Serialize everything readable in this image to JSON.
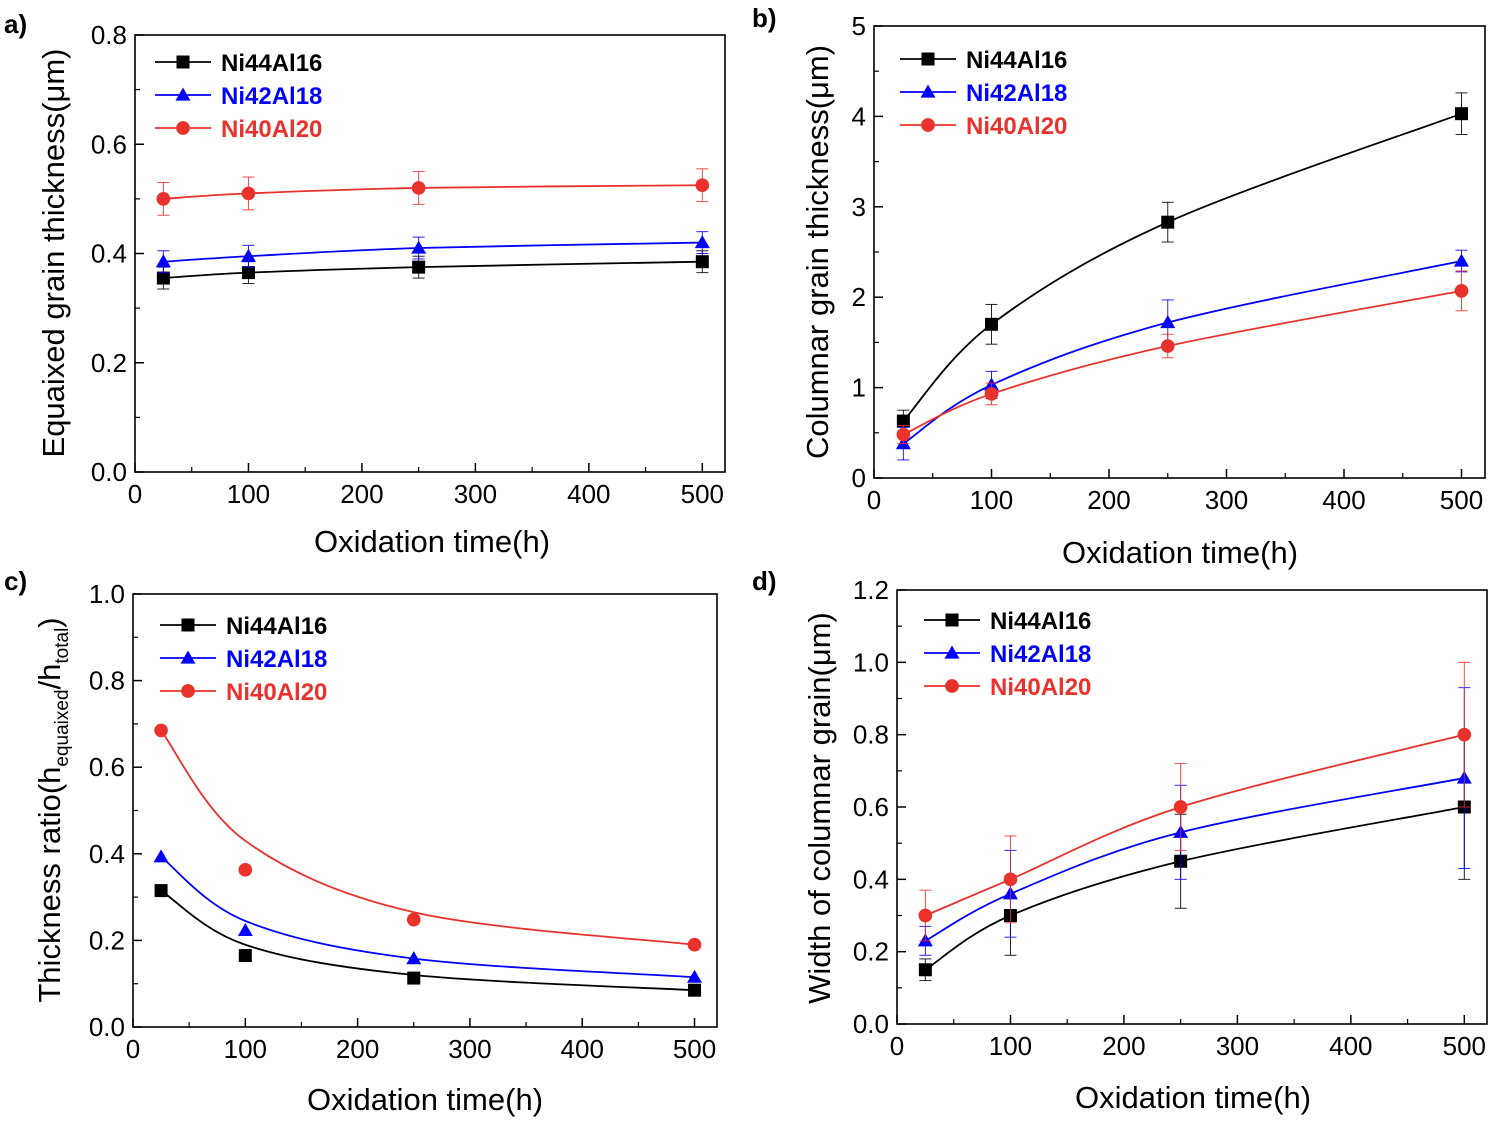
{
  "chart_data": [
    {
      "type": "line",
      "panel_label": "a)",
      "xlabel": "Oxidation time(h)",
      "ylabel": "Equaixed grain thickness(μm)",
      "xlim": [
        0,
        520
      ],
      "ylim": [
        0,
        0.8
      ],
      "xticks": [
        0,
        100,
        200,
        300,
        400,
        500
      ],
      "yticks": [
        0.0,
        0.2,
        0.4,
        0.6,
        0.8
      ],
      "yticklabels": [
        "0.0",
        "0.2",
        "0.4",
        "0.6",
        "0.8"
      ],
      "x": [
        25,
        100,
        250,
        500
      ],
      "legend_position": "top-left",
      "grid": false,
      "series": [
        {
          "name": "Ni44Al16",
          "color": "#000000",
          "marker": "square",
          "values": [
            0.355,
            0.365,
            0.375,
            0.385
          ],
          "errors": [
            0.02,
            0.02,
            0.02,
            0.02
          ]
        },
        {
          "name": "Ni42Al18",
          "color": "#0000ff",
          "marker": "triangle",
          "values": [
            0.385,
            0.395,
            0.41,
            0.42
          ],
          "errors": [
            0.02,
            0.02,
            0.02,
            0.02
          ]
        },
        {
          "name": "Ni40Al20",
          "color": "#e8322b",
          "marker": "circle",
          "values": [
            0.5,
            0.51,
            0.52,
            0.525
          ],
          "errors": [
            0.03,
            0.03,
            0.03,
            0.03
          ]
        }
      ]
    },
    {
      "type": "line",
      "panel_label": "b)",
      "xlabel": "Oxidation time(h)",
      "ylabel": "Columnar grain thickness(μm)",
      "xlim": [
        0,
        520
      ],
      "ylim": [
        0,
        5
      ],
      "xticks": [
        0,
        100,
        200,
        300,
        400,
        500
      ],
      "yticks": [
        0,
        1,
        2,
        3,
        4,
        5
      ],
      "yticklabels": [
        "0",
        "1",
        "2",
        "3",
        "4",
        "5"
      ],
      "x": [
        25,
        100,
        250,
        500
      ],
      "legend_position": "top-left",
      "grid": false,
      "series": [
        {
          "name": "Ni44Al16",
          "color": "#000000",
          "marker": "square",
          "values": [
            0.63,
            1.7,
            2.83,
            4.03
          ],
          "errors": [
            0.12,
            0.22,
            0.22,
            0.23
          ]
        },
        {
          "name": "Ni42Al18",
          "color": "#0000ff",
          "marker": "triangle",
          "values": [
            0.38,
            1.03,
            1.72,
            2.4
          ],
          "errors": [
            0.18,
            0.15,
            0.25,
            0.12
          ]
        },
        {
          "name": "Ni40Al20",
          "color": "#e8322b",
          "marker": "circle",
          "values": [
            0.48,
            0.93,
            1.46,
            2.07
          ],
          "errors": [
            0.1,
            0.12,
            0.13,
            0.22
          ]
        }
      ]
    },
    {
      "type": "line",
      "panel_label": "c)",
      "xlabel": "Oxidation time(h)",
      "ylabel": "Thickness ratio(h",
      "ylabel_sub1": "equaixed",
      "ylabel_mid": "/h",
      "ylabel_sub2": "total",
      "ylabel_end": ")",
      "xlim": [
        0,
        520
      ],
      "ylim": [
        0,
        1.0
      ],
      "xticks": [
        0,
        100,
        200,
        300,
        400,
        500
      ],
      "yticks": [
        0.0,
        0.2,
        0.4,
        0.6,
        0.8,
        1.0
      ],
      "yticklabels": [
        "0.0",
        "0.2",
        "0.4",
        "0.6",
        "0.8",
        "1.0"
      ],
      "x": [
        25,
        100,
        250,
        500
      ],
      "legend_position": "top-left",
      "grid": false,
      "series": [
        {
          "name": "Ni44Al16",
          "color": "#000000",
          "marker": "square",
          "values": [
            0.315,
            0.165,
            0.113,
            0.085
          ],
          "fit": [
            0.315,
            0.19,
            0.12,
            0.085
          ]
        },
        {
          "name": "Ni42Al18",
          "color": "#0000ff",
          "marker": "triangle",
          "values": [
            0.393,
            0.223,
            0.158,
            0.115
          ],
          "fit": [
            0.393,
            0.245,
            0.158,
            0.115
          ]
        },
        {
          "name": "Ni40Al20",
          "color": "#e8322b",
          "marker": "circle",
          "values": [
            0.685,
            0.363,
            0.248,
            0.19
          ],
          "fit": [
            0.685,
            0.43,
            0.265,
            0.19
          ]
        }
      ]
    },
    {
      "type": "line",
      "panel_label": "d)",
      "xlabel": "Oxidation time(h)",
      "ylabel": "Width of columnar grain(μm)",
      "xlim": [
        0,
        520
      ],
      "ylim": [
        0,
        1.2
      ],
      "xticks": [
        0,
        100,
        200,
        300,
        400,
        500
      ],
      "yticks": [
        0.0,
        0.2,
        0.4,
        0.6,
        0.8,
        1.0,
        1.2
      ],
      "yticklabels": [
        "0.0",
        "0.2",
        "0.4",
        "0.6",
        "0.8",
        "1.0",
        "1.2"
      ],
      "x": [
        25,
        100,
        250,
        500
      ],
      "legend_position": "top-left",
      "grid": false,
      "series": [
        {
          "name": "Ni44Al16",
          "color": "#000000",
          "marker": "square",
          "values": [
            0.15,
            0.3,
            0.45,
            0.6
          ],
          "errors": [
            0.03,
            0.11,
            0.13,
            0.2
          ]
        },
        {
          "name": "Ni42Al18",
          "color": "#0000ff",
          "marker": "triangle",
          "values": [
            0.23,
            0.36,
            0.53,
            0.68
          ],
          "errors": [
            0.04,
            0.12,
            0.13,
            0.25
          ]
        },
        {
          "name": "Ni40Al20",
          "color": "#e8322b",
          "marker": "circle",
          "values": [
            0.3,
            0.4,
            0.6,
            0.8
          ],
          "errors": [
            0.07,
            0.12,
            0.12,
            0.2
          ]
        }
      ]
    }
  ]
}
